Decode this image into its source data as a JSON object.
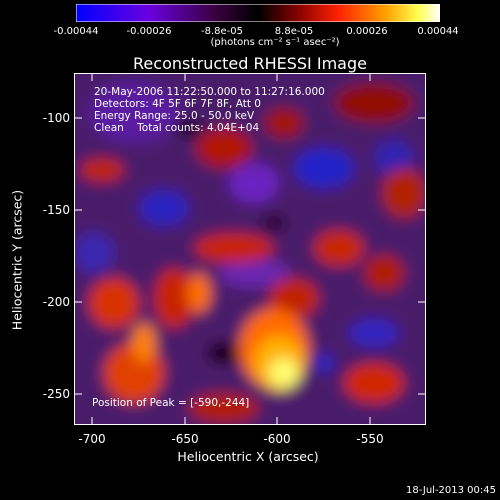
{
  "colorbar": {
    "ticks": [
      "-0.00044",
      "-0.00026",
      "-8.8e-05",
      "8.8e-05",
      "0.00026",
      "0.00044"
    ],
    "units": "(photons cm⁻² s⁻¹ asec⁻²)",
    "colors": [
      "#0000ff",
      "#7a00d6",
      "#2a002a",
      "#000000",
      "#8a0000",
      "#ff2a00",
      "#ffa000",
      "#ffff40",
      "#ffffff"
    ]
  },
  "title": "Reconstructed RHESSI Image",
  "annotations": {
    "time": "20-May-2006 11:22:50.000 to 11:27:16.000",
    "detectors": "Detectors: 4F 5F 6F 7F 8F, Att 0",
    "energy": "Energy Range: 25.0 - 50.0 keV",
    "clean": "Clean    Total counts: 4.04E+04",
    "peak": "Position of Peak = [-590,-244]"
  },
  "axes": {
    "xlabel": "Heliocentric X (arcsec)",
    "ylabel": "Heliocentric Y (arcsec)",
    "xticks": [
      "-700",
      "-650",
      "-600",
      "-550"
    ],
    "yticks": [
      "-100",
      "-150",
      "-200",
      "-250"
    ],
    "xrange": [
      -710,
      -520
    ],
    "yrange": [
      -85,
      -265
    ]
  },
  "footer": {
    "date": "18-Jul-2013 00:45"
  }
}
